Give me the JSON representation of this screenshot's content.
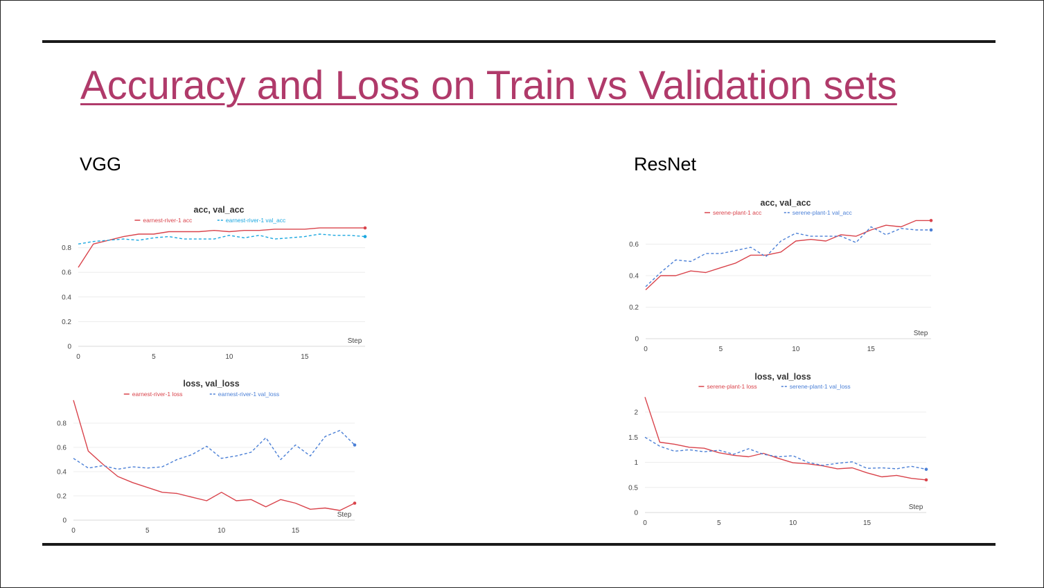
{
  "slide": {
    "title": "Accuracy and Loss on Train vs Validation sets",
    "left_label": "VGG",
    "right_label": "ResNet"
  },
  "colors": {
    "title": "#b03a6a",
    "train_line": "#d9434b",
    "vgg_acc_val_line": "#1aa7e0",
    "val_line": "#4a7fd6",
    "grid": "#ececec",
    "tick_text": "#444444"
  },
  "chart_data": [
    {
      "id": "vgg-acc",
      "type": "line",
      "title": "acc, val_acc",
      "xlabel": "Step",
      "xlim": [
        0,
        19
      ],
      "ylim": [
        0,
        1
      ],
      "xticks": [
        0,
        5,
        10,
        15
      ],
      "yticks": [
        0,
        0.2,
        0.4,
        0.6,
        0.8
      ],
      "grid": true,
      "legend": "top-center",
      "x": [
        0,
        1,
        2,
        3,
        4,
        5,
        6,
        7,
        8,
        9,
        10,
        11,
        12,
        13,
        14,
        15,
        16,
        17,
        18,
        19
      ],
      "series": [
        {
          "name": "earnest-river-1 acc",
          "style": "solid",
          "color": "#d9434b",
          "values": [
            0.64,
            0.83,
            0.86,
            0.89,
            0.91,
            0.91,
            0.93,
            0.93,
            0.93,
            0.94,
            0.93,
            0.94,
            0.94,
            0.95,
            0.95,
            0.95,
            0.96,
            0.96,
            0.96,
            0.96
          ]
        },
        {
          "name": "earnest-river-1 val_acc",
          "style": "dashed",
          "color": "#1aa7e0",
          "values": [
            0.83,
            0.85,
            0.86,
            0.87,
            0.86,
            0.88,
            0.89,
            0.87,
            0.87,
            0.87,
            0.9,
            0.88,
            0.9,
            0.87,
            0.88,
            0.89,
            0.91,
            0.9,
            0.9,
            0.89
          ]
        }
      ]
    },
    {
      "id": "vgg-loss",
      "type": "line",
      "title": "loss, val_loss",
      "xlabel": "Step",
      "xlim": [
        0,
        19
      ],
      "ylim": [
        0,
        1.0
      ],
      "xticks": [
        0,
        5,
        10,
        15
      ],
      "yticks": [
        0,
        0.2,
        0.4,
        0.6,
        0.8
      ],
      "grid": true,
      "legend": "top-center",
      "x": [
        0,
        1,
        2,
        3,
        4,
        5,
        6,
        7,
        8,
        9,
        10,
        11,
        12,
        13,
        14,
        15,
        16,
        17,
        18,
        19
      ],
      "series": [
        {
          "name": "earnest-river-1 loss",
          "style": "solid",
          "color": "#d9434b",
          "values": [
            0.99,
            0.57,
            0.46,
            0.36,
            0.31,
            0.27,
            0.23,
            0.22,
            0.19,
            0.16,
            0.23,
            0.16,
            0.17,
            0.11,
            0.17,
            0.14,
            0.09,
            0.1,
            0.08,
            0.14
          ]
        },
        {
          "name": "earnest-river-1 val_loss",
          "style": "dashed",
          "color": "#4a7fd6",
          "values": [
            0.51,
            0.43,
            0.45,
            0.42,
            0.44,
            0.43,
            0.44,
            0.5,
            0.54,
            0.61,
            0.51,
            0.53,
            0.56,
            0.68,
            0.5,
            0.62,
            0.53,
            0.69,
            0.74,
            0.62
          ]
        }
      ]
    },
    {
      "id": "resnet-acc",
      "type": "line",
      "title": "acc, val_acc",
      "xlabel": "Step",
      "xlim": [
        0,
        19
      ],
      "ylim": [
        0,
        0.8
      ],
      "xticks": [
        0,
        5,
        10,
        15
      ],
      "yticks": [
        0,
        0.2,
        0.4,
        0.6
      ],
      "grid": true,
      "legend": "top-center",
      "x": [
        0,
        1,
        2,
        3,
        4,
        5,
        6,
        7,
        8,
        9,
        10,
        11,
        12,
        13,
        14,
        15,
        16,
        17,
        18,
        19
      ],
      "series": [
        {
          "name": "serene-plant-1 acc",
          "style": "solid",
          "color": "#d9434b",
          "values": [
            0.31,
            0.4,
            0.4,
            0.43,
            0.42,
            0.45,
            0.48,
            0.53,
            0.53,
            0.55,
            0.62,
            0.63,
            0.62,
            0.66,
            0.65,
            0.69,
            0.72,
            0.71,
            0.75,
            0.75
          ]
        },
        {
          "name": "serene-plant-1 val_acc",
          "style": "dashed",
          "color": "#4a7fd6",
          "values": [
            0.33,
            0.42,
            0.5,
            0.49,
            0.54,
            0.54,
            0.56,
            0.58,
            0.52,
            0.62,
            0.67,
            0.65,
            0.65,
            0.65,
            0.61,
            0.71,
            0.66,
            0.7,
            0.69,
            0.69
          ]
        }
      ]
    },
    {
      "id": "resnet-loss",
      "type": "line",
      "title": "loss, val_loss",
      "xlabel": "Step",
      "xlim": [
        0,
        19
      ],
      "ylim": [
        0,
        2.4
      ],
      "xticks": [
        0,
        5,
        10,
        15
      ],
      "yticks": [
        0,
        0.5,
        1,
        1.5,
        2
      ],
      "grid": true,
      "legend": "top-center",
      "x": [
        0,
        1,
        2,
        3,
        4,
        5,
        6,
        7,
        8,
        9,
        10,
        11,
        12,
        13,
        14,
        15,
        16,
        17,
        18,
        19
      ],
      "series": [
        {
          "name": "serene-plant-1 loss",
          "style": "solid",
          "color": "#d9434b",
          "values": [
            2.3,
            1.4,
            1.36,
            1.3,
            1.28,
            1.19,
            1.14,
            1.11,
            1.18,
            1.08,
            0.99,
            0.97,
            0.93,
            0.87,
            0.89,
            0.79,
            0.71,
            0.74,
            0.68,
            0.65
          ]
        },
        {
          "name": "serene-plant-1 val_loss",
          "style": "dashed",
          "color": "#4a7fd6",
          "values": [
            1.5,
            1.32,
            1.22,
            1.25,
            1.21,
            1.24,
            1.16,
            1.27,
            1.16,
            1.11,
            1.13,
            1.0,
            0.94,
            0.98,
            1.01,
            0.88,
            0.89,
            0.87,
            0.92,
            0.86
          ]
        }
      ]
    }
  ]
}
